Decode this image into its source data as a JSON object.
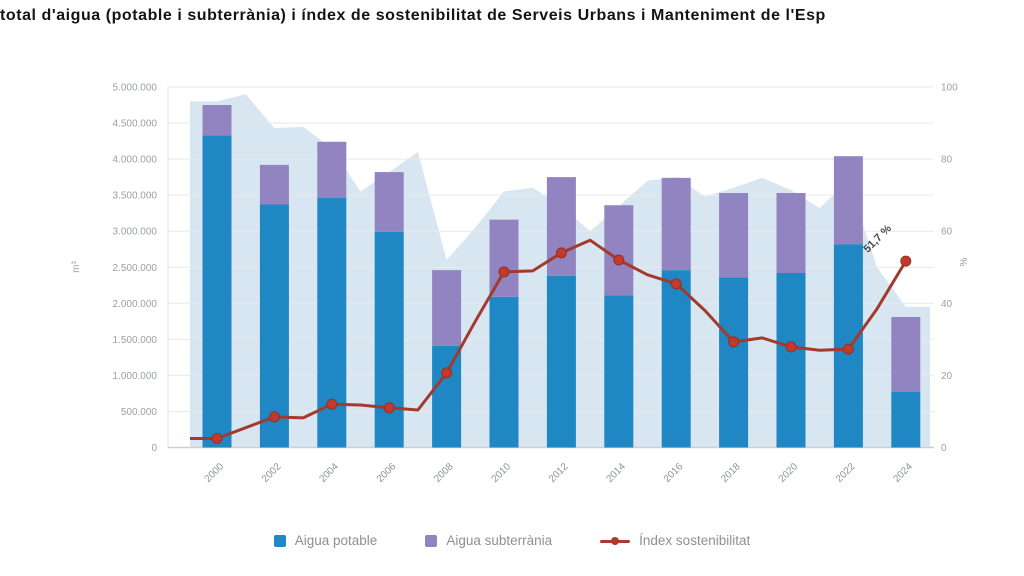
{
  "title": "total d'aigua (potable i subterrània) i índex de sostenibilitat de Serveis Urbans i Manteniment de l'Esp",
  "chart_data": {
    "type": "combo (stacked bars + background area + line)",
    "x_axis": {
      "tick_labels": [
        "2000",
        "2002",
        "2004",
        "2006",
        "2008",
        "2010",
        "2012",
        "2014",
        "2016",
        "2018",
        "2020",
        "2022",
        "2024"
      ],
      "tick_rotation_deg": -45
    },
    "left_axis": {
      "name": "m³",
      "min": 0,
      "max": 5000000,
      "tick_labels": [
        "5.000.000",
        "4.500.000",
        "4.000.000",
        "3.500.000",
        "3.000.000",
        "2.500.000",
        "2.000.000",
        "1.500.000",
        "1.000.000",
        "500.000",
        "0"
      ],
      "grid": true
    },
    "right_axis": {
      "name": "%",
      "min": 0,
      "max": 100,
      "tick_labels": [
        "100",
        "80",
        "60",
        "40",
        "20",
        "0"
      ]
    },
    "bars": {
      "years": [
        2000,
        2002,
        2004,
        2006,
        2008,
        2010,
        2012,
        2014,
        2016,
        2018,
        2020,
        2022,
        2024
      ],
      "series": [
        {
          "name": "Aigua potable",
          "color": "#1e87c4",
          "values": [
            4330000,
            3370000,
            3460000,
            2990000,
            1410000,
            2090000,
            2380000,
            2110000,
            2460000,
            2360000,
            2420000,
            2820000,
            770000
          ]
        },
        {
          "name": "Aigua subterrània",
          "color": "#9184c0",
          "values": [
            420000,
            550000,
            780000,
            830000,
            1050000,
            1070000,
            1370000,
            1250000,
            1280000,
            1170000,
            1110000,
            1220000,
            1040000
          ]
        }
      ]
    },
    "area_background": {
      "name": "",
      "color": "rgba(203,222,238,0.75)",
      "years": [
        2000,
        2001,
        2002,
        2003,
        2004,
        2005,
        2006,
        2007,
        2008,
        2009,
        2010,
        2011,
        2012,
        2013,
        2014,
        2015,
        2016,
        2017,
        2018,
        2019,
        2020,
        2021,
        2022,
        2023,
        2024
      ],
      "values_m3": [
        4800000,
        4900000,
        4430000,
        4450000,
        4150000,
        3550000,
        3820000,
        4100000,
        2600000,
        3050000,
        3550000,
        3600000,
        3350000,
        3000000,
        3350000,
        3700000,
        3750000,
        3480000,
        3600000,
        3740000,
        3570000,
        3320000,
        3700000,
        2500000,
        1950000
      ]
    },
    "line": {
      "name": "Índex sostenibilitat",
      "axis": "right",
      "color": "#a23a2e",
      "marker_color": "#c13b2c",
      "years": [
        2000,
        2001,
        2002,
        2003,
        2004,
        2005,
        2006,
        2007,
        2008,
        2009,
        2010,
        2011,
        2012,
        2013,
        2014,
        2015,
        2016,
        2017,
        2018,
        2019,
        2020,
        2021,
        2022,
        2023,
        2024
      ],
      "values_pct": [
        2.5,
        5.5,
        8.5,
        8.2,
        12.0,
        11.8,
        11.0,
        10.4,
        20.7,
        35.0,
        48.7,
        49.0,
        54.0,
        57.5,
        52.0,
        47.9,
        45.4,
        38.0,
        29.3,
        30.4,
        27.9,
        27.0,
        27.3,
        38.5,
        51.7
      ],
      "marker_years": [
        2000,
        2002,
        2004,
        2006,
        2008,
        2010,
        2012,
        2014,
        2016,
        2018,
        2020,
        2022,
        2024
      ]
    },
    "annotation_last_point": "51,7 %",
    "legend": {
      "position": "bottom-center",
      "items": [
        {
          "label": "Aigua potable",
          "swatch": "square",
          "color": "#1e87c4"
        },
        {
          "label": "Aigua subterrània",
          "swatch": "square",
          "color": "#9184c0"
        },
        {
          "label": "Índex sostenibilitat",
          "swatch": "line-dot",
          "color": "#a93b2f"
        }
      ]
    },
    "colors": {
      "grid": "#e9e9e9",
      "axis_text": "#9aa0a6",
      "annotation_text": "#4a4a4a"
    }
  }
}
